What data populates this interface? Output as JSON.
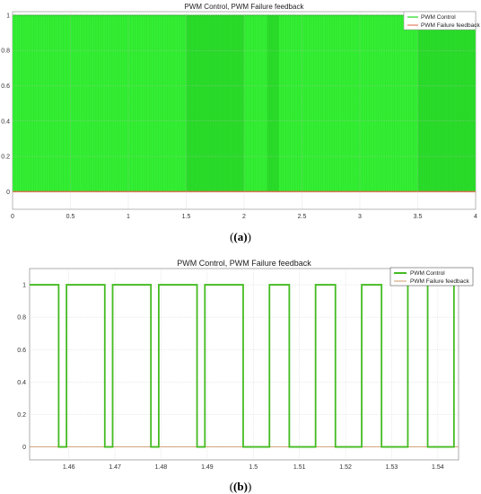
{
  "chart_data": [
    {
      "type": "line",
      "title": "PWM Control, PWM Failure feedback",
      "caption": "(a)",
      "xlim": [
        0,
        4
      ],
      "ylim": [
        -0.1,
        1.02
      ],
      "x_ticks": [
        "0",
        "0.5",
        "1",
        "1.5",
        "2",
        "2.5",
        "3",
        "3.5",
        "4"
      ],
      "y_ticks": [
        "0",
        "0.2",
        "0.4",
        "0.6",
        "0.8",
        "1"
      ],
      "grid": true,
      "legend_position": "top-right",
      "series": [
        {
          "name": "PWM Control",
          "color": "#22dd22",
          "low": 0,
          "high": 1,
          "note_values": "dense square wave between 0 and 1 over 0–4"
        },
        {
          "name": "PWM Failure feedback",
          "color": "#dd6644",
          "values": [
            0,
            0
          ]
        }
      ],
      "highlighted_bands": [
        [
          1.5,
          2.0
        ],
        [
          2.2,
          2.3
        ],
        [
          3.5,
          4.0
        ]
      ]
    },
    {
      "type": "line",
      "title": "PWM Control, PWM Failure feedback",
      "caption": "(b)",
      "xlim": [
        1.4515,
        1.5445
      ],
      "ylim": [
        -0.08,
        1.1
      ],
      "x_ticks": [
        "1.46",
        "1.47",
        "1.48",
        "1.49",
        "1.5",
        "1.51",
        "1.52",
        "1.53",
        "1.54"
      ],
      "y_ticks": [
        "0",
        "0.2",
        "0.4",
        "0.6",
        "0.8",
        "1"
      ],
      "grid": true,
      "legend_position": "top-right",
      "series": [
        {
          "name": "PWM Control",
          "color": "#44bb22",
          "steps_x": [
            1.4515,
            1.4578,
            1.4595,
            1.4678,
            1.4695,
            1.4778,
            1.4795,
            1.4878,
            1.4895,
            1.4978,
            1.5035,
            1.5078,
            1.5135,
            1.5178,
            1.5235,
            1.5278,
            1.5335,
            1.5378,
            1.5435,
            1.5445
          ],
          "steps_y": [
            1,
            0,
            1,
            0,
            1,
            0,
            1,
            0,
            1,
            0,
            1,
            0,
            1,
            0,
            1,
            0,
            1,
            0,
            1,
            1
          ]
        },
        {
          "name": "PWM Failure feedback",
          "color": "#cc9966",
          "values": [
            0,
            0
          ]
        }
      ]
    }
  ]
}
